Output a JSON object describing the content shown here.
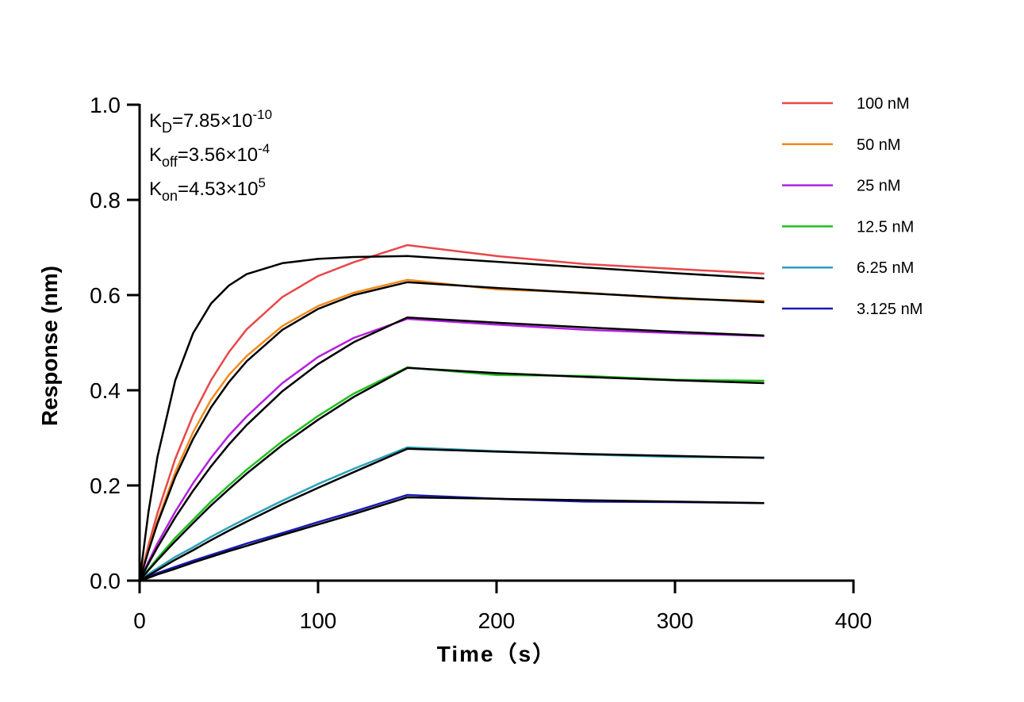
{
  "chart_data": {
    "type": "line",
    "x_label": "Time（s）",
    "y_label": "Response (nm)",
    "xlim": [
      0,
      400
    ],
    "ylim": [
      0,
      1.0
    ],
    "xticks": [
      0,
      100,
      200,
      300,
      400
    ],
    "yticks": [
      {
        "value": 0,
        "label": "0.0"
      },
      0.2,
      0.4,
      0.6,
      0.8,
      {
        "value": 1.0,
        "label": "1.0"
      }
    ],
    "annotations": [
      {
        "symbol": "K",
        "subscript": "D",
        "text": "=7.85×10",
        "superscript": "-10"
      },
      {
        "symbol": "K",
        "subscript": "off",
        "text": "=3.56×10",
        "superscript": "-4"
      },
      {
        "symbol": "K",
        "subscript": "on",
        "text": "=4.53×10",
        "superscript": "5"
      }
    ],
    "x": [
      0,
      5,
      10,
      20,
      30,
      40,
      50,
      60,
      80,
      100,
      120,
      150,
      200,
      250,
      300,
      350
    ],
    "series": [
      {
        "name": "100 nM",
        "color": "#e8474a",
        "values": [
          0,
          0.075,
          0.142,
          0.256,
          0.348,
          0.421,
          0.48,
          0.528,
          0.596,
          0.64,
          0.669,
          0.705,
          0.682,
          0.665,
          0.655,
          0.645
        ]
      },
      {
        "name": "50 nM",
        "color": "#f28a1c",
        "values": [
          0,
          0.066,
          0.125,
          0.228,
          0.312,
          0.38,
          0.432,
          0.472,
          0.535,
          0.577,
          0.605,
          0.632,
          0.612,
          0.605,
          0.592,
          0.588
        ]
      },
      {
        "name": "25 nM",
        "color": "#b41fe0",
        "values": [
          0,
          0.04,
          0.078,
          0.145,
          0.205,
          0.258,
          0.305,
          0.345,
          0.415,
          0.47,
          0.51,
          0.55,
          0.538,
          0.527,
          0.52,
          0.514
        ]
      },
      {
        "name": "12.5 nM",
        "color": "#1fbf1f",
        "values": [
          0,
          0.024,
          0.047,
          0.09,
          0.128,
          0.166,
          0.2,
          0.233,
          0.293,
          0.346,
          0.393,
          0.448,
          0.432,
          0.43,
          0.422,
          0.42
        ]
      },
      {
        "name": "6.25 nM",
        "color": "#2aa2b8",
        "values": [
          0,
          0.014,
          0.026,
          0.05,
          0.07,
          0.092,
          0.112,
          0.131,
          0.168,
          0.203,
          0.235,
          0.28,
          0.272,
          0.265,
          0.26,
          0.259
        ]
      },
      {
        "name": "3.125 nM",
        "color": "#1a1ab4",
        "values": [
          0,
          0.008,
          0.016,
          0.029,
          0.042,
          0.054,
          0.066,
          0.078,
          0.1,
          0.123,
          0.145,
          0.18,
          0.172,
          0.166,
          0.165,
          0.163
        ]
      }
    ],
    "fits": [
      {
        "color": "#000000",
        "values": [
          0,
          0.145,
          0.26,
          0.421,
          0.52,
          0.582,
          0.62,
          0.644,
          0.667,
          0.676,
          0.68,
          0.682,
          0.67,
          0.658,
          0.646,
          0.635
        ]
      },
      {
        "color": "#000000",
        "values": [
          0,
          0.063,
          0.12,
          0.218,
          0.298,
          0.364,
          0.417,
          0.461,
          0.527,
          0.571,
          0.6,
          0.627,
          0.615,
          0.604,
          0.594,
          0.585
        ]
      },
      {
        "color": "#000000",
        "values": [
          0,
          0.036,
          0.07,
          0.133,
          0.189,
          0.24,
          0.286,
          0.327,
          0.398,
          0.455,
          0.501,
          0.553,
          0.542,
          0.532,
          0.523,
          0.515
        ]
      },
      {
        "color": "#000000",
        "values": [
          0,
          0.022,
          0.043,
          0.083,
          0.121,
          0.158,
          0.192,
          0.225,
          0.285,
          0.338,
          0.386,
          0.447,
          0.436,
          0.428,
          0.421,
          0.415
        ]
      },
      {
        "color": "#000000",
        "values": [
          0,
          0.011,
          0.022,
          0.044,
          0.064,
          0.085,
          0.105,
          0.124,
          0.161,
          0.195,
          0.228,
          0.277,
          0.271,
          0.266,
          0.262,
          0.258
        ]
      },
      {
        "color": "#000000",
        "values": [
          0,
          0.006,
          0.013,
          0.025,
          0.038,
          0.05,
          0.062,
          0.073,
          0.096,
          0.118,
          0.14,
          0.175,
          0.172,
          0.169,
          0.166,
          0.163
        ]
      }
    ]
  }
}
